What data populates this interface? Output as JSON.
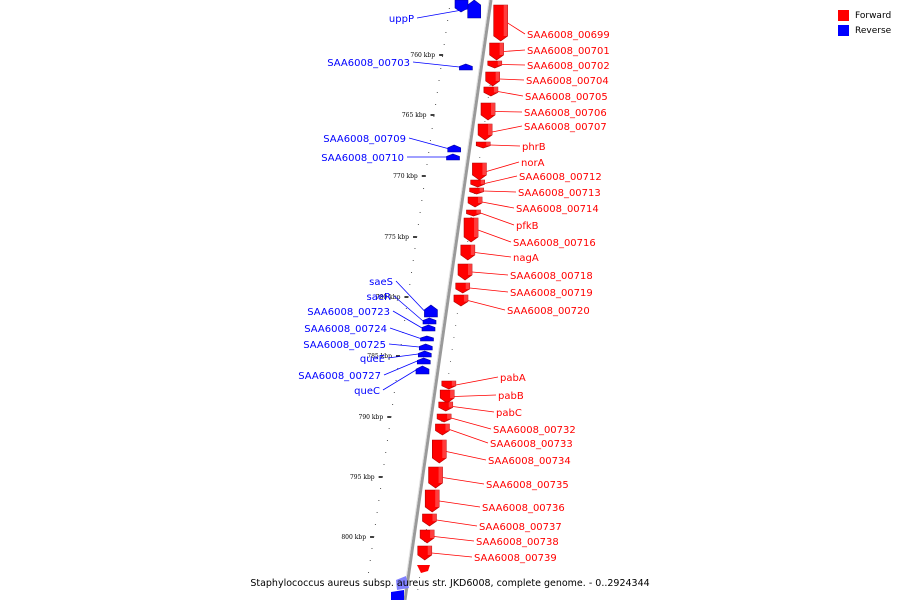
{
  "legend": {
    "forward_label": "Forward",
    "reverse_label": "Reverse",
    "forward_color": "#ff0000",
    "reverse_color": "#0000ff"
  },
  "caption": "Staphylococcus aureus subsp. aureus str. JKD6008, complete genome. - 0..2924344",
  "ticks": [
    "760 kbp",
    "765 kbp",
    "770 kbp",
    "775 kbp",
    "780 kbp",
    "785 kbp",
    "790 kbp",
    "795 kbp",
    "800 kbp"
  ],
  "genes_forward": [
    "SAA6008_00699",
    "SAA6008_00701",
    "SAA6008_00702",
    "SAA6008_00704",
    "SAA6008_00705",
    "SAA6008_00706",
    "SAA6008_00707",
    "phrB",
    "norA",
    "SAA6008_00712",
    "SAA6008_00713",
    "SAA6008_00714",
    "pfkB",
    "SAA6008_00716",
    "nagA",
    "SAA6008_00718",
    "SAA6008_00719",
    "SAA6008_00720",
    "pabA",
    "pabB",
    "pabC",
    "SAA6008_00732",
    "SAA6008_00733",
    "SAA6008_00734",
    "SAA6008_00735",
    "SAA6008_00736",
    "SAA6008_00737",
    "SAA6008_00738",
    "SAA6008_00739"
  ],
  "genes_reverse": [
    "uppP",
    "SAA6008_00703",
    "SAA6008_00709",
    "SAA6008_00710",
    "saeS",
    "saeR",
    "SAA6008_00723",
    "SAA6008_00724",
    "SAA6008_00725",
    "queE",
    "SAA6008_00727",
    "queC"
  ]
}
